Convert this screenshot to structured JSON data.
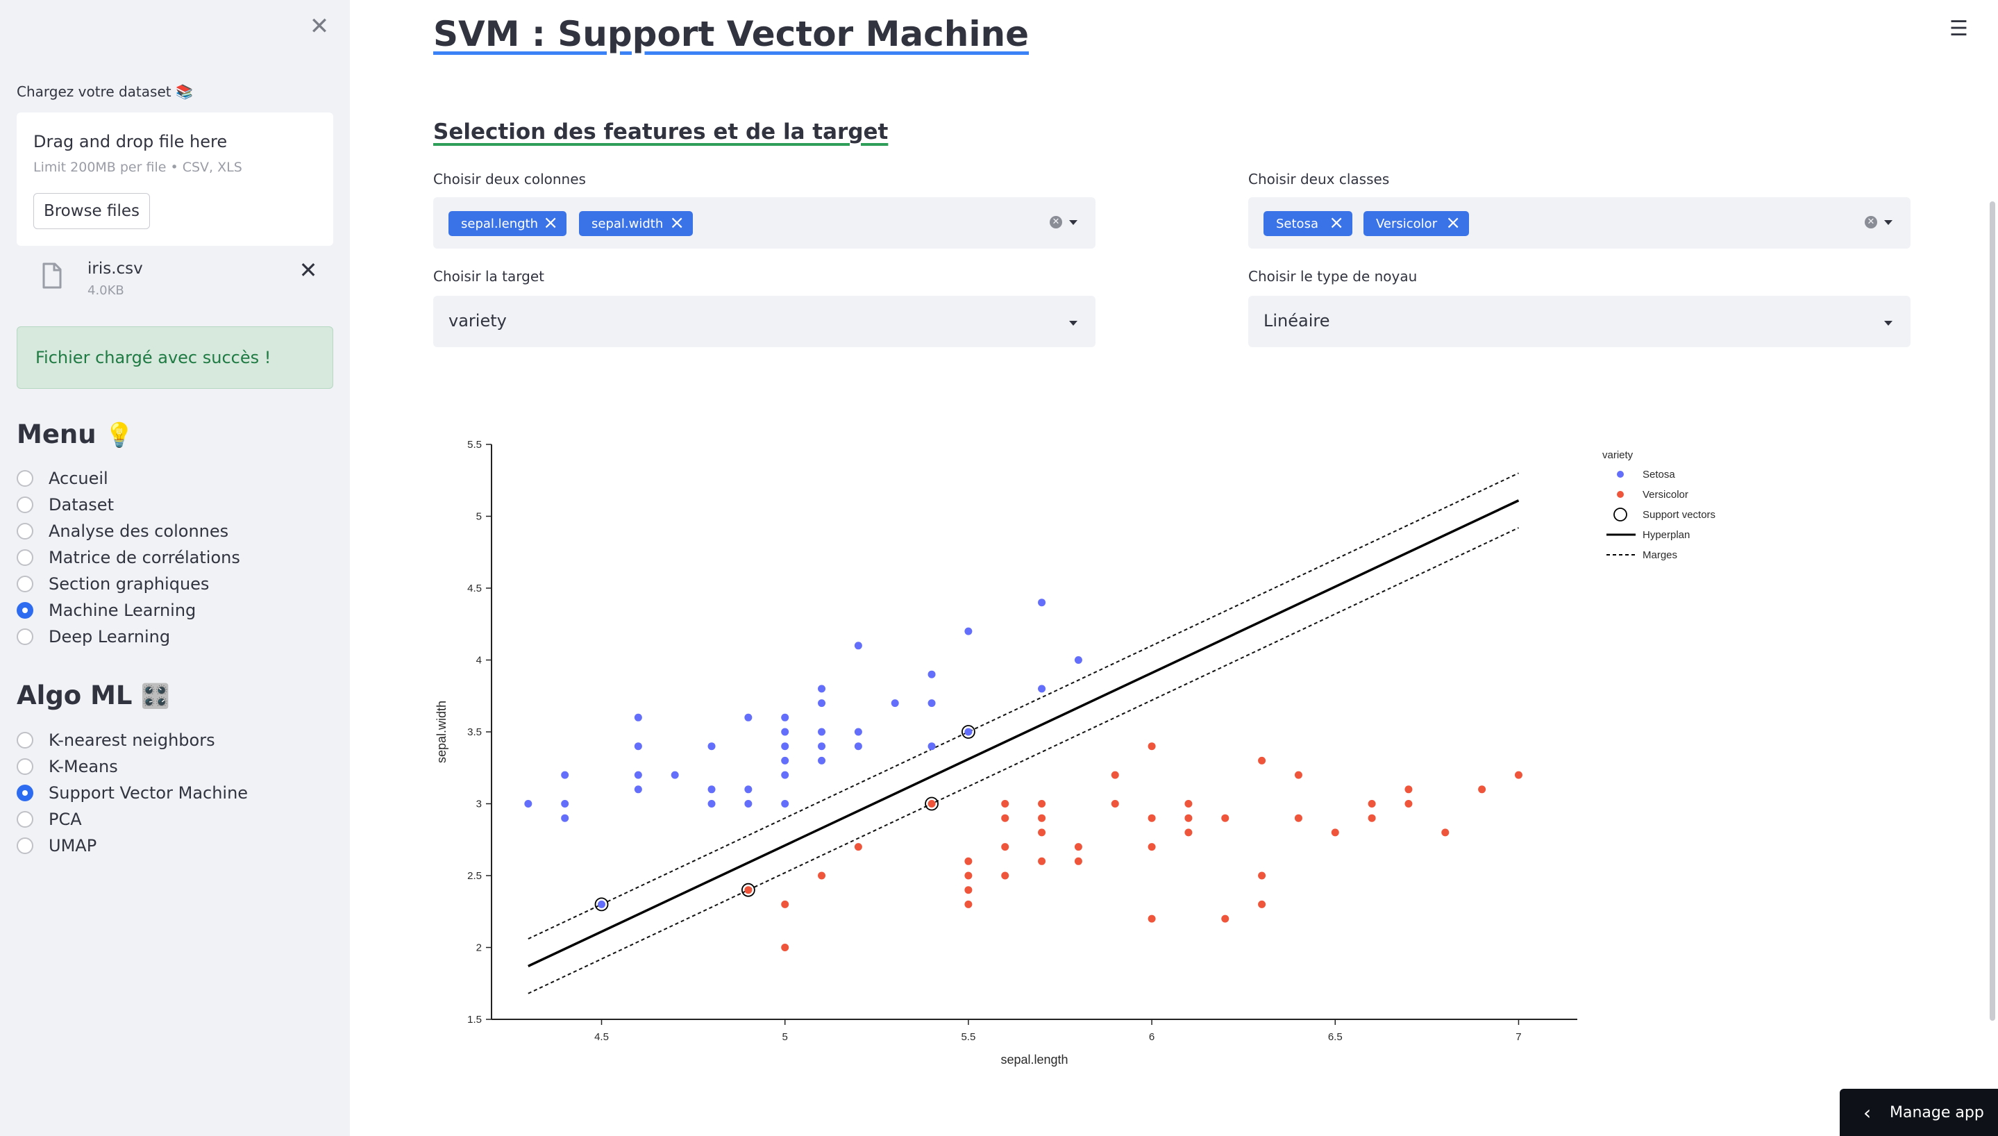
{
  "sidebar": {
    "close_icon": "close-icon",
    "upload_label": "Chargez votre dataset 📚",
    "uploader": {
      "title": "Drag and drop file here",
      "subtitle": "Limit 200MB per file • CSV, XLS",
      "browse_label": "Browse files"
    },
    "file": {
      "name": "iris.csv",
      "size": "4.0KB"
    },
    "success_message": "Fichier chargé avec succès !",
    "menu": {
      "heading": "Menu",
      "emoji": "💡",
      "items": [
        "Accueil",
        "Dataset",
        "Analyse des colonnes",
        "Matrice de corrélations",
        "Section graphiques",
        "Machine Learning",
        "Deep Learning"
      ],
      "selected": "Machine Learning"
    },
    "algo": {
      "heading": "Algo ML",
      "emoji": "🎛️",
      "items": [
        "K-nearest neighbors",
        "K-Means",
        "Support Vector Machine",
        "PCA",
        "UMAP"
      ],
      "selected": "Support Vector Machine"
    }
  },
  "main": {
    "title": "SVM : Support Vector Machine",
    "subtitle": "Selection des features et de la target",
    "columns": {
      "label": "Choisir deux colonnes",
      "tags": [
        "sepal.length",
        "sepal.width"
      ]
    },
    "classes": {
      "label": "Choisir deux classes",
      "tags": [
        "Setosa",
        "Versicolor"
      ]
    },
    "target": {
      "label": "Choisir la target",
      "value": "variety"
    },
    "kernel": {
      "label": "Choisir le type de noyau",
      "value": "Linéaire"
    }
  },
  "footer": {
    "manage_app": "Manage app"
  },
  "colors": {
    "accent": "#3a73e8",
    "setosa": "#636efa",
    "versicolor": "#ef553b",
    "success_bg": "#d6e9dc",
    "sidebar_bg": "#f0f2f6"
  },
  "chart_data": {
    "type": "scatter",
    "title": "",
    "xlabel": "sepal.length",
    "ylabel": "sepal.width",
    "xlim": [
      4.2,
      7.16
    ],
    "ylim": [
      1.5,
      5.5
    ],
    "xticks": [
      4.5,
      5,
      5.5,
      6,
      6.5,
      7
    ],
    "yticks": [
      1.5,
      2,
      2.5,
      3,
      3.5,
      4,
      4.5,
      5,
      5.5
    ],
    "legend": {
      "title": "variety",
      "position": "top-right",
      "entries": [
        "Setosa",
        "Versicolor",
        "Support vectors",
        "Hyperplan",
        "Marges"
      ]
    },
    "series": [
      {
        "name": "Setosa",
        "color": "#636efa",
        "points": [
          [
            4.3,
            3.0
          ],
          [
            4.4,
            2.9
          ],
          [
            4.4,
            3.0
          ],
          [
            4.4,
            3.2
          ],
          [
            4.5,
            2.3
          ],
          [
            4.6,
            3.1
          ],
          [
            4.6,
            3.2
          ],
          [
            4.6,
            3.4
          ],
          [
            4.6,
            3.6
          ],
          [
            4.7,
            3.2
          ],
          [
            4.8,
            3.0
          ],
          [
            4.8,
            3.1
          ],
          [
            4.8,
            3.4
          ],
          [
            4.9,
            3.0
          ],
          [
            4.9,
            3.1
          ],
          [
            4.9,
            3.6
          ],
          [
            5.0,
            3.0
          ],
          [
            5.0,
            3.2
          ],
          [
            5.0,
            3.3
          ],
          [
            5.0,
            3.4
          ],
          [
            5.0,
            3.5
          ],
          [
            5.0,
            3.6
          ],
          [
            5.1,
            3.3
          ],
          [
            5.1,
            3.4
          ],
          [
            5.1,
            3.5
          ],
          [
            5.1,
            3.7
          ],
          [
            5.1,
            3.8
          ],
          [
            5.2,
            3.4
          ],
          [
            5.2,
            3.5
          ],
          [
            5.2,
            4.1
          ],
          [
            5.3,
            3.7
          ],
          [
            5.4,
            3.4
          ],
          [
            5.4,
            3.7
          ],
          [
            5.4,
            3.9
          ],
          [
            5.5,
            3.5
          ],
          [
            5.5,
            4.2
          ],
          [
            5.7,
            3.8
          ],
          [
            5.7,
            4.4
          ],
          [
            5.8,
            4.0
          ]
        ]
      },
      {
        "name": "Versicolor",
        "color": "#ef553b",
        "points": [
          [
            4.9,
            2.4
          ],
          [
            5.0,
            2.0
          ],
          [
            5.0,
            2.3
          ],
          [
            5.1,
            2.5
          ],
          [
            5.2,
            2.7
          ],
          [
            5.4,
            3.0
          ],
          [
            5.5,
            2.3
          ],
          [
            5.5,
            2.4
          ],
          [
            5.5,
            2.5
          ],
          [
            5.5,
            2.6
          ],
          [
            5.6,
            2.5
          ],
          [
            5.6,
            2.7
          ],
          [
            5.6,
            2.9
          ],
          [
            5.6,
            3.0
          ],
          [
            5.7,
            2.6
          ],
          [
            5.7,
            2.8
          ],
          [
            5.7,
            2.9
          ],
          [
            5.7,
            3.0
          ],
          [
            5.8,
            2.6
          ],
          [
            5.8,
            2.7
          ],
          [
            5.9,
            3.0
          ],
          [
            5.9,
            3.2
          ],
          [
            6.0,
            2.2
          ],
          [
            6.0,
            2.7
          ],
          [
            6.0,
            2.9
          ],
          [
            6.0,
            3.4
          ],
          [
            6.1,
            2.8
          ],
          [
            6.1,
            2.9
          ],
          [
            6.1,
            3.0
          ],
          [
            6.2,
            2.2
          ],
          [
            6.2,
            2.9
          ],
          [
            6.3,
            2.3
          ],
          [
            6.3,
            2.5
          ],
          [
            6.3,
            3.3
          ],
          [
            6.4,
            2.9
          ],
          [
            6.4,
            3.2
          ],
          [
            6.5,
            2.8
          ],
          [
            6.6,
            2.9
          ],
          [
            6.6,
            3.0
          ],
          [
            6.7,
            3.0
          ],
          [
            6.7,
            3.1
          ],
          [
            6.8,
            2.8
          ],
          [
            6.9,
            3.1
          ],
          [
            7.0,
            3.2
          ]
        ]
      }
    ],
    "support_vectors": [
      [
        4.5,
        2.3
      ],
      [
        5.5,
        3.5
      ],
      [
        4.9,
        2.4
      ],
      [
        5.4,
        3.0
      ]
    ],
    "hyperplan": [
      [
        4.3,
        1.87
      ],
      [
        7.0,
        5.11
      ]
    ],
    "marges": [
      [
        [
          4.3,
          2.06
        ],
        [
          7.0,
          5.3
        ]
      ],
      [
        [
          4.3,
          1.68
        ],
        [
          7.0,
          4.92
        ]
      ]
    ]
  }
}
